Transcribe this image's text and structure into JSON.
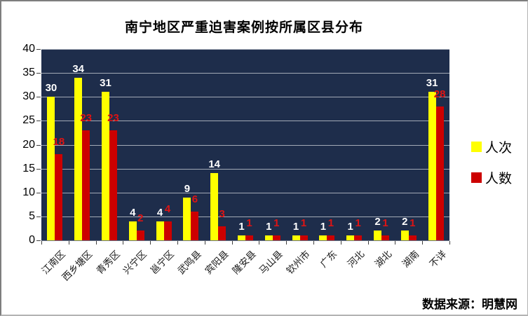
{
  "source_note": "数据来源：明慧网",
  "chart_data": {
    "type": "bar",
    "title": "南宁地区严重迫害案例按所属区县分布",
    "categories": [
      "江南区",
      "西乡塘区",
      "青秀区",
      "兴宁区",
      "邕宁区",
      "武鸣县",
      "宾阳县",
      "隆安县",
      "马山县",
      "钦州市",
      "广东",
      "河北",
      "湖北",
      "湖南",
      "不详"
    ],
    "series": [
      {
        "name": "人次",
        "color": "#FFFF00",
        "label_color": "#FFFFFF",
        "values": [
          30,
          34,
          31,
          4,
          4,
          9,
          14,
          1,
          1,
          1,
          1,
          1,
          2,
          2,
          31
        ]
      },
      {
        "name": "人数",
        "color": "#CC0000",
        "label_color": "#DE1414",
        "values": [
          18,
          23,
          23,
          2,
          4,
          6,
          3,
          1,
          1,
          1,
          1,
          1,
          1,
          1,
          28
        ]
      }
    ],
    "ylabel": "",
    "xlabel": "",
    "ylim": [
      0,
      40
    ],
    "y_ticks": [
      0,
      5,
      10,
      15,
      20,
      25,
      30,
      35,
      40
    ],
    "grid": "horizontal",
    "legend_position": "right",
    "plot_bg": "#1E2D4B",
    "gridline_color": "#A3AAB6"
  }
}
